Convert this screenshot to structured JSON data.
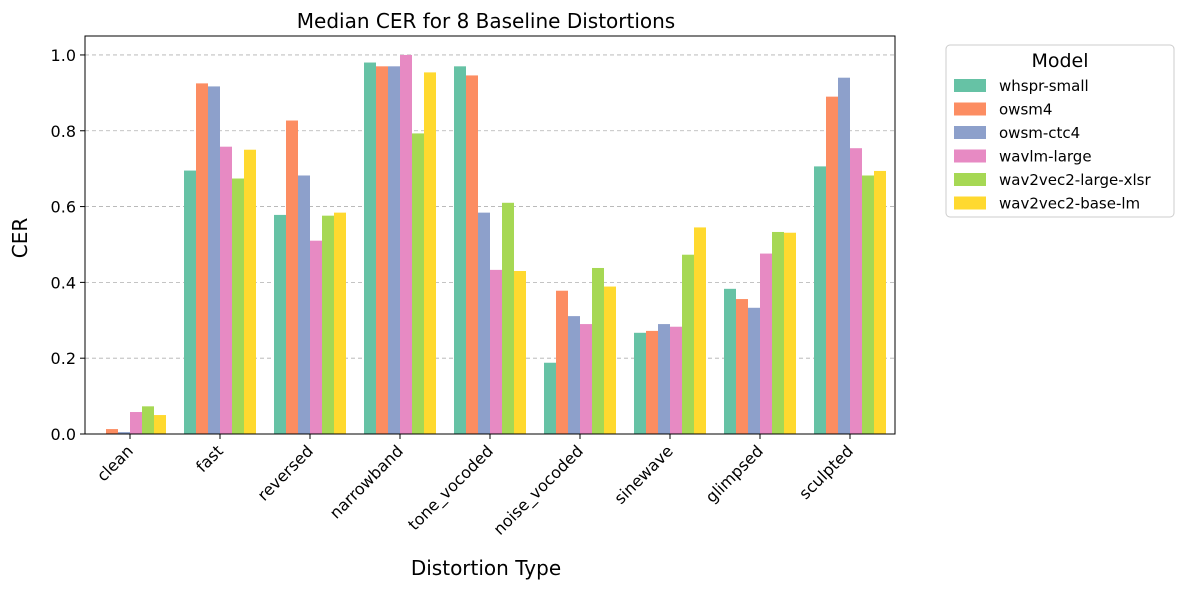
{
  "chart_data": {
    "type": "bar",
    "title": "Median CER for 8 Baseline Distortions",
    "xlabel": "Distortion Type",
    "ylabel": "CER",
    "ylim": [
      0,
      1.05
    ],
    "yticks": [
      "0.0",
      "0.2",
      "0.4",
      "0.6",
      "0.8",
      "1.0"
    ],
    "grid": "y dashed",
    "legend_title": "Model",
    "legend_position": "outside-top-right",
    "categories": [
      "clean",
      "fast",
      "reversed",
      "narrowband",
      "tone_vocoded",
      "noise_vocoded",
      "sinewave",
      "glimpsed",
      "sculpted"
    ],
    "series": [
      {
        "name": "whspr-small",
        "color": "#66c2a5",
        "values": [
          0.0,
          0.695,
          0.578,
          0.98,
          0.97,
          0.188,
          0.267,
          0.383,
          0.706
        ]
      },
      {
        "name": "owsm4",
        "color": "#fc8d62",
        "values": [
          0.013,
          0.925,
          0.827,
          0.97,
          0.946,
          0.378,
          0.272,
          0.356,
          0.89
        ]
      },
      {
        "name": "owsm-ctc4",
        "color": "#8da0cb",
        "values": [
          0.005,
          0.917,
          0.682,
          0.97,
          0.584,
          0.311,
          0.29,
          0.333,
          0.94
        ]
      },
      {
        "name": "wavlm-large",
        "color": "#e78ac3",
        "values": [
          0.058,
          0.758,
          0.51,
          1.0,
          0.433,
          0.29,
          0.283,
          0.476,
          0.754
        ]
      },
      {
        "name": "wav2vec2-large-xlsr",
        "color": "#a6d854",
        "values": [
          0.073,
          0.674,
          0.576,
          0.793,
          0.61,
          0.438,
          0.473,
          0.533,
          0.682
        ]
      },
      {
        "name": "wav2vec2-base-lm",
        "color": "#ffd92f",
        "values": [
          0.05,
          0.75,
          0.584,
          0.954,
          0.43,
          0.389,
          0.545,
          0.531,
          0.694
        ]
      }
    ]
  }
}
